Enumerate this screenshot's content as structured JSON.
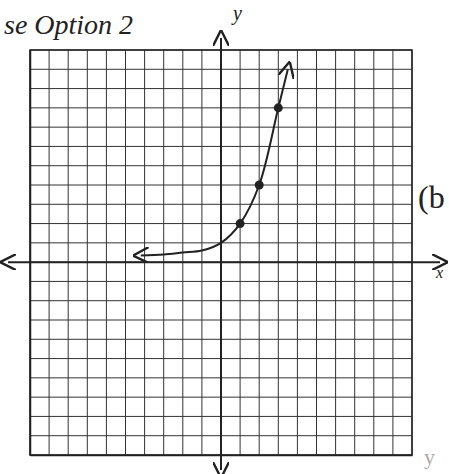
{
  "chart_data": {
    "type": "line",
    "title": "se Option 2",
    "x_label": "x",
    "y_label": "y",
    "annotations": [
      "(b",
      "y"
    ],
    "xlim": [
      -10,
      10
    ],
    "ylim": [
      -10,
      11
    ],
    "xticks": [
      -10,
      -9,
      -8,
      -7,
      -6,
      -5,
      -4,
      -3,
      -2,
      -1,
      0,
      1,
      2,
      3,
      4,
      5,
      6,
      7,
      8,
      9,
      10
    ],
    "yticks": [
      -10,
      -9,
      -8,
      -7,
      -6,
      -5,
      -4,
      -3,
      -2,
      -1,
      0,
      1,
      2,
      3,
      4,
      5,
      6,
      7,
      8,
      9,
      10,
      11
    ],
    "grid": true,
    "tick_labels": false,
    "series": [
      {
        "type": "line",
        "color": "#222222",
        "line_style": "solid",
        "x": [
          -4.2,
          -3,
          -2,
          -1,
          0,
          1,
          2,
          3,
          3.5
        ],
        "values": [
          0.35,
          0.4,
          0.5,
          0.6,
          1,
          2,
          4,
          8,
          10
        ]
      },
      {
        "type": "scatter",
        "color": "#222222",
        "marker": "circle",
        "x": [
          1,
          2,
          3
        ],
        "values": [
          2,
          4,
          8
        ]
      }
    ]
  }
}
